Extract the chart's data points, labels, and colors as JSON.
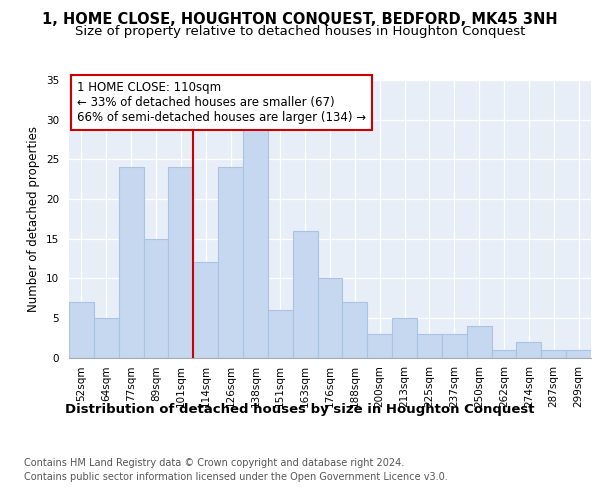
{
  "title": "1, HOME CLOSE, HOUGHTON CONQUEST, BEDFORD, MK45 3NH",
  "subtitle": "Size of property relative to detached houses in Houghton Conquest",
  "xlabel": "Distribution of detached houses by size in Houghton Conquest",
  "ylabel": "Number of detached properties",
  "bin_labels": [
    "52sqm",
    "64sqm",
    "77sqm",
    "89sqm",
    "101sqm",
    "114sqm",
    "126sqm",
    "138sqm",
    "151sqm",
    "163sqm",
    "176sqm",
    "188sqm",
    "200sqm",
    "213sqm",
    "225sqm",
    "237sqm",
    "250sqm",
    "262sqm",
    "274sqm",
    "287sqm",
    "299sqm"
  ],
  "bar_values": [
    7,
    5,
    24,
    15,
    24,
    12,
    24,
    29,
    6,
    16,
    10,
    7,
    3,
    5,
    3,
    3,
    4,
    1,
    2,
    1,
    1
  ],
  "bar_color": "#c5d8f0",
  "bar_edgecolor": "#a8c4e0",
  "vline_x_index": 5,
  "vline_color": "#cc0000",
  "annotation_text": "1 HOME CLOSE: 110sqm\n← 33% of detached houses are smaller (67)\n66% of semi-detached houses are larger (134) →",
  "annotation_box_color": "#ffffff",
  "annotation_box_edgecolor": "#cc0000",
  "ylim": [
    0,
    35
  ],
  "yticks": [
    0,
    5,
    10,
    15,
    20,
    25,
    30,
    35
  ],
  "footer_line1": "Contains HM Land Registry data © Crown copyright and database right 2024.",
  "footer_line2": "Contains public sector information licensed under the Open Government Licence v3.0.",
  "bg_color": "#e8eef8",
  "fig_bg_color": "#ffffff",
  "title_fontsize": 10.5,
  "subtitle_fontsize": 9.5,
  "xlabel_fontsize": 9.5,
  "ylabel_fontsize": 8.5,
  "tick_fontsize": 7.5,
  "annotation_fontsize": 8.5,
  "footer_fontsize": 7
}
